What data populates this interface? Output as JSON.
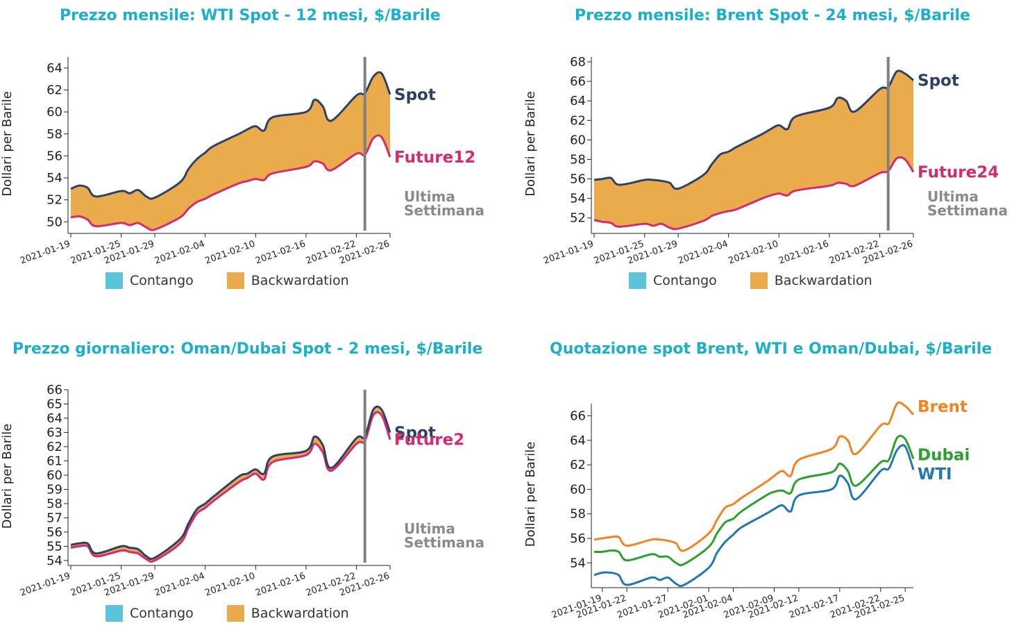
{
  "colors": {
    "title": "#1aafcc",
    "spot": "#2e4066",
    "future": "#d42a6e",
    "backwardation": "#e9ab4c",
    "contango": "#5bc4dc",
    "week_marker": "#808080",
    "ultima": "#8a8a8a",
    "brent": "#f5821f",
    "dubai": "#2ca02c",
    "wti": "#1f77b4"
  },
  "legend": {
    "contango": "Contango",
    "backwardation": "Backwardation"
  },
  "week_label": {
    "line1": "Ultima",
    "line2": "Settimana"
  },
  "chart_data": [
    {
      "type": "area",
      "title": "Prezzo mensile: WTI Spot - 12 mesi, $/Barile",
      "ylabel": "Dollari per Barile",
      "xlim": [
        "2021-01-19",
        "2021-02-26"
      ],
      "ylim": [
        49.2,
        65
      ],
      "yticks": [
        50,
        52,
        54,
        56,
        58,
        60,
        62,
        64
      ],
      "xticks": [
        "2021-01-19",
        "2021-01-25",
        "2021-01-29",
        "2021-02-04",
        "2021-02-10",
        "2021-02-16",
        "2021-02-22",
        "2021-02-26"
      ],
      "week_marker": "2021-02-23",
      "series": [
        {
          "name": "Spot",
          "x": [
            "2021-01-19",
            "2021-01-20",
            "2021-01-21",
            "2021-01-22",
            "2021-01-25",
            "2021-01-26",
            "2021-01-27",
            "2021-01-28",
            "2021-01-29",
            "2021-02-01",
            "2021-02-02",
            "2021-02-03",
            "2021-02-04",
            "2021-02-05",
            "2021-02-08",
            "2021-02-09",
            "2021-02-10",
            "2021-02-11",
            "2021-02-12",
            "2021-02-16",
            "2021-02-17",
            "2021-02-18",
            "2021-02-19",
            "2021-02-22",
            "2021-02-23",
            "2021-02-24",
            "2021-02-25",
            "2021-02-26"
          ],
          "values": [
            53.0,
            53.3,
            53.1,
            52.3,
            52.8,
            52.6,
            52.9,
            52.3,
            52.2,
            53.6,
            54.8,
            55.7,
            56.3,
            56.9,
            58.0,
            58.4,
            58.7,
            58.3,
            59.5,
            60.0,
            61.1,
            60.5,
            59.2,
            61.5,
            61.7,
            63.2,
            63.5,
            61.6
          ]
        },
        {
          "name": "Future12",
          "x": [
            "2021-01-19",
            "2021-01-20",
            "2021-01-21",
            "2021-01-22",
            "2021-01-25",
            "2021-01-26",
            "2021-01-27",
            "2021-01-28",
            "2021-01-29",
            "2021-02-01",
            "2021-02-02",
            "2021-02-03",
            "2021-02-04",
            "2021-02-05",
            "2021-02-08",
            "2021-02-09",
            "2021-02-10",
            "2021-02-11",
            "2021-02-12",
            "2021-02-16",
            "2021-02-17",
            "2021-02-18",
            "2021-02-19",
            "2021-02-22",
            "2021-02-23",
            "2021-02-24",
            "2021-02-25",
            "2021-02-26"
          ],
          "values": [
            50.4,
            50.5,
            50.2,
            49.6,
            49.9,
            49.7,
            49.9,
            49.5,
            49.3,
            50.4,
            51.2,
            51.8,
            52.1,
            52.5,
            53.5,
            53.7,
            53.9,
            53.8,
            54.4,
            55.0,
            55.5,
            55.3,
            54.7,
            56.2,
            56.1,
            57.6,
            57.7,
            55.9
          ]
        }
      ]
    },
    {
      "type": "area",
      "title": "Prezzo mensile: Brent Spot - 24 mesi, $/Barile",
      "ylabel": "Dollari per Barile",
      "xlim": [
        "2021-01-19",
        "2021-02-26"
      ],
      "ylim": [
        50.7,
        68.5
      ],
      "yticks": [
        52,
        54,
        56,
        58,
        60,
        62,
        64,
        66,
        68
      ],
      "xticks": [
        "2021-01-19",
        "2021-01-25",
        "2021-01-29",
        "2021-02-04",
        "2021-02-10",
        "2021-02-16",
        "2021-02-22",
        "2021-02-26"
      ],
      "week_marker": "2021-02-23",
      "series": [
        {
          "name": "Spot",
          "x": [
            "2021-01-19",
            "2021-01-20",
            "2021-01-21",
            "2021-01-22",
            "2021-01-25",
            "2021-01-26",
            "2021-01-27",
            "2021-01-28",
            "2021-01-29",
            "2021-02-01",
            "2021-02-02",
            "2021-02-03",
            "2021-02-04",
            "2021-02-05",
            "2021-02-08",
            "2021-02-09",
            "2021-02-10",
            "2021-02-11",
            "2021-02-12",
            "2021-02-16",
            "2021-02-17",
            "2021-02-18",
            "2021-02-19",
            "2021-02-22",
            "2021-02-23",
            "2021-02-24",
            "2021-02-25",
            "2021-02-26"
          ],
          "values": [
            55.9,
            56.0,
            56.1,
            55.4,
            55.9,
            55.9,
            55.8,
            55.6,
            55.0,
            56.4,
            57.5,
            58.5,
            58.8,
            59.3,
            60.6,
            61.1,
            61.5,
            61.1,
            62.4,
            63.3,
            64.3,
            64.0,
            62.9,
            65.2,
            65.4,
            67.0,
            66.8,
            66.1
          ]
        },
        {
          "name": "Future24",
          "x": [
            "2021-01-19",
            "2021-01-20",
            "2021-01-21",
            "2021-01-22",
            "2021-01-25",
            "2021-01-26",
            "2021-01-27",
            "2021-01-28",
            "2021-01-29",
            "2021-02-01",
            "2021-02-02",
            "2021-02-03",
            "2021-02-04",
            "2021-02-05",
            "2021-02-08",
            "2021-02-09",
            "2021-02-10",
            "2021-02-11",
            "2021-02-12",
            "2021-02-16",
            "2021-02-17",
            "2021-02-18",
            "2021-02-19",
            "2021-02-22",
            "2021-02-23",
            "2021-02-24",
            "2021-02-25",
            "2021-02-26"
          ],
          "values": [
            51.8,
            51.6,
            51.5,
            51.1,
            51.4,
            51.2,
            51.4,
            51.0,
            50.9,
            51.7,
            52.2,
            52.5,
            52.7,
            52.9,
            54.0,
            54.3,
            54.5,
            54.3,
            54.8,
            55.3,
            55.6,
            55.5,
            55.3,
            56.6,
            56.8,
            58.1,
            58.0,
            56.7
          ]
        }
      ]
    },
    {
      "type": "area",
      "title": "Prezzo giornaliero: Oman/Dubai Spot - 2 mesi, $/Barile",
      "ylabel": "Dollari per Barile",
      "xlim": [
        "2021-01-19",
        "2021-02-26"
      ],
      "ylim": [
        53.85,
        66
      ],
      "yticks": [
        54,
        55,
        56,
        57,
        58,
        59,
        60,
        61,
        62,
        63,
        64,
        65,
        66
      ],
      "xticks": [
        "2021-01-19",
        "2021-01-25",
        "2021-01-29",
        "2021-02-04",
        "2021-02-10",
        "2021-02-16",
        "2021-02-22",
        "2021-02-26"
      ],
      "week_marker": "2021-02-23",
      "series": [
        {
          "name": "Spot",
          "x": [
            "2021-01-19",
            "2021-01-20",
            "2021-01-21",
            "2021-01-22",
            "2021-01-25",
            "2021-01-26",
            "2021-01-27",
            "2021-01-28",
            "2021-01-29",
            "2021-02-01",
            "2021-02-02",
            "2021-02-03",
            "2021-02-04",
            "2021-02-05",
            "2021-02-08",
            "2021-02-09",
            "2021-02-10",
            "2021-02-11",
            "2021-02-12",
            "2021-02-16",
            "2021-02-17",
            "2021-02-18",
            "2021-02-19",
            "2021-02-22",
            "2021-02-23",
            "2021-02-24",
            "2021-02-25",
            "2021-02-26"
          ],
          "values": [
            55.1,
            55.2,
            55.2,
            54.5,
            55.0,
            54.9,
            54.8,
            54.3,
            54.2,
            55.5,
            56.6,
            57.6,
            58.0,
            58.5,
            59.9,
            60.1,
            60.4,
            60.1,
            61.3,
            61.7,
            62.7,
            62.1,
            60.5,
            62.6,
            62.7,
            64.6,
            64.6,
            63.0
          ]
        },
        {
          "name": "Future2",
          "x": [
            "2021-01-19",
            "2021-01-20",
            "2021-01-21",
            "2021-01-22",
            "2021-01-25",
            "2021-01-26",
            "2021-01-27",
            "2021-01-28",
            "2021-01-29",
            "2021-02-01",
            "2021-02-02",
            "2021-02-03",
            "2021-02-04",
            "2021-02-05",
            "2021-02-08",
            "2021-02-09",
            "2021-02-10",
            "2021-02-11",
            "2021-02-12",
            "2021-02-16",
            "2021-02-17",
            "2021-02-18",
            "2021-02-19",
            "2021-02-22",
            "2021-02-23",
            "2021-02-24",
            "2021-02-25",
            "2021-02-26"
          ],
          "values": [
            54.9,
            55.0,
            55.0,
            54.3,
            54.7,
            54.6,
            54.5,
            54.1,
            54.0,
            55.2,
            56.3,
            57.3,
            57.7,
            58.2,
            59.5,
            59.8,
            60.1,
            59.7,
            60.9,
            61.4,
            62.2,
            61.6,
            60.3,
            62.2,
            62.4,
            64.2,
            64.2,
            62.5
          ]
        }
      ]
    },
    {
      "type": "line",
      "title": "Quotazione spot Brent, WTI e Oman/Dubai, $/Barile",
      "ylabel": "Dollari per Barile",
      "xlim": [
        "2021-01-18",
        "2021-02-26"
      ],
      "ylim": [
        52.2,
        67
      ],
      "yticks": [
        54,
        56,
        58,
        60,
        62,
        64,
        66
      ],
      "xticks": [
        "2021-01-19",
        "2021-01-22",
        "2021-01-27",
        "2021-02-01",
        "2021-02-04",
        "2021-02-09",
        "2021-02-12",
        "2021-02-17",
        "2021-02-22",
        "2021-02-25"
      ],
      "series": [
        {
          "name": "Brent",
          "x": [
            "2021-01-18",
            "2021-01-19",
            "2021-01-20",
            "2021-01-21",
            "2021-01-22",
            "2021-01-25",
            "2021-01-26",
            "2021-01-27",
            "2021-01-28",
            "2021-01-29",
            "2021-02-01",
            "2021-02-02",
            "2021-02-03",
            "2021-02-04",
            "2021-02-05",
            "2021-02-08",
            "2021-02-09",
            "2021-02-10",
            "2021-02-11",
            "2021-02-12",
            "2021-02-16",
            "2021-02-17",
            "2021-02-18",
            "2021-02-19",
            "2021-02-22",
            "2021-02-23",
            "2021-02-24",
            "2021-02-25",
            "2021-02-26"
          ],
          "values": [
            55.9,
            56.0,
            56.1,
            56.1,
            55.4,
            55.9,
            55.9,
            55.8,
            55.6,
            55.0,
            56.4,
            57.5,
            58.5,
            58.8,
            59.3,
            60.6,
            61.1,
            61.5,
            61.1,
            62.4,
            63.3,
            64.3,
            64.0,
            62.9,
            65.2,
            65.4,
            67.0,
            66.8,
            66.1
          ]
        },
        {
          "name": "Dubai",
          "x": [
            "2021-01-18",
            "2021-01-19",
            "2021-01-20",
            "2021-01-21",
            "2021-01-22",
            "2021-01-25",
            "2021-01-26",
            "2021-01-27",
            "2021-01-28",
            "2021-01-29",
            "2021-02-01",
            "2021-02-02",
            "2021-02-03",
            "2021-02-04",
            "2021-02-05",
            "2021-02-08",
            "2021-02-09",
            "2021-02-10",
            "2021-02-11",
            "2021-02-12",
            "2021-02-16",
            "2021-02-17",
            "2021-02-18",
            "2021-02-19",
            "2021-02-22",
            "2021-02-23",
            "2021-02-24",
            "2021-02-25",
            "2021-02-26"
          ],
          "values": [
            54.9,
            54.9,
            55.0,
            54.9,
            54.2,
            54.7,
            54.5,
            54.5,
            54.0,
            53.9,
            55.3,
            56.4,
            57.3,
            57.6,
            58.2,
            59.5,
            59.8,
            59.9,
            59.7,
            60.8,
            61.4,
            62.1,
            61.5,
            60.3,
            62.2,
            62.4,
            64.2,
            64.1,
            62.5
          ]
        },
        {
          "name": "WTI",
          "x": [
            "2021-01-18",
            "2021-01-19",
            "2021-01-20",
            "2021-01-21",
            "2021-01-22",
            "2021-01-25",
            "2021-01-26",
            "2021-01-27",
            "2021-01-28",
            "2021-01-29",
            "2021-02-01",
            "2021-02-02",
            "2021-02-03",
            "2021-02-04",
            "2021-02-05",
            "2021-02-08",
            "2021-02-09",
            "2021-02-10",
            "2021-02-11",
            "2021-02-12",
            "2021-02-16",
            "2021-02-17",
            "2021-02-18",
            "2021-02-19",
            "2021-02-22",
            "2021-02-23",
            "2021-02-24",
            "2021-02-25",
            "2021-02-26"
          ],
          "values": [
            53.0,
            53.2,
            53.2,
            53.0,
            52.2,
            52.8,
            52.6,
            52.8,
            52.3,
            52.2,
            53.6,
            54.8,
            55.7,
            56.3,
            56.9,
            58.0,
            58.4,
            58.7,
            58.2,
            59.5,
            60.0,
            61.1,
            60.5,
            59.2,
            61.5,
            61.7,
            63.2,
            63.5,
            61.6
          ]
        }
      ]
    }
  ]
}
